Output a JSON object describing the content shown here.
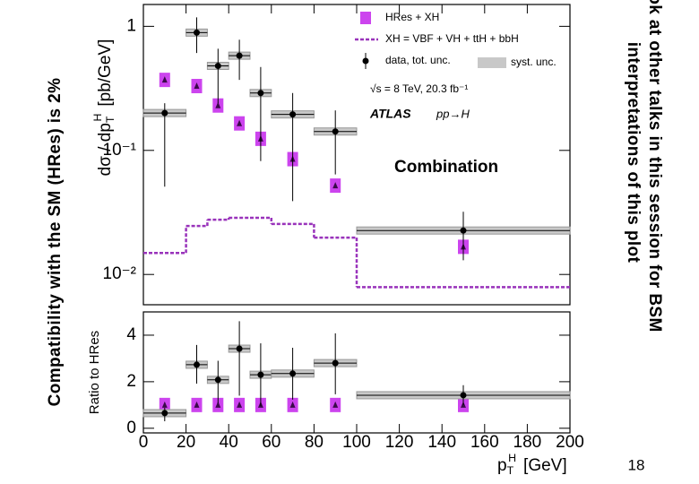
{
  "slide": {
    "left_note": "Compatibility with the SM (HRes) is 2%",
    "right_note": [
      "Look at other talks in this session for BSM",
      "interpretations of this plot"
    ],
    "page_number": "18"
  },
  "chart_data": [
    {
      "type": "errorbar",
      "log": true,
      "ylabel": {
        "text": "dσ / dp",
        "sub": "T",
        "sup": "H",
        "unit": "[pb/GeV]"
      },
      "xlim": [
        0,
        200
      ],
      "ylim": [
        0.0057,
        1.5
      ],
      "yticks": [
        {
          "value": 0.01,
          "label": "10⁻²"
        },
        {
          "value": 0.1,
          "label": "10⁻¹"
        },
        1
      ],
      "bins": [
        0,
        20,
        30,
        40,
        50,
        60,
        80,
        100,
        200
      ],
      "x": [
        10,
        25,
        35,
        45,
        55,
        70,
        90,
        150
      ],
      "series": [
        {
          "name": "HRes + XH",
          "color": "#cc44ee",
          "marker": "box",
          "values": [
            0.37,
            0.33,
            0.23,
            0.165,
            0.124,
            0.085,
            0.052,
            0.0167
          ]
        },
        {
          "name": "XH = VBF + VH + ttH + bbH",
          "color": "#9933bb",
          "marker": "step",
          "values": [
            0.0149,
            0.0246,
            0.0276,
            0.0286,
            0.0286,
            0.0255,
            0.0198,
            0.0079
          ]
        },
        {
          "name": "data, tot. unc.",
          "color": "#000000",
          "marker": "point",
          "values": [
            0.2,
            0.89,
            0.48,
            0.58,
            0.29,
            0.195,
            0.142,
            0.0226
          ],
          "lo": [
            0.051,
            0.61,
            0.24,
            0.37,
            0.082,
            0.039,
            0.064,
            0.013
          ],
          "hi": [
            0.24,
            1.18,
            0.66,
            0.78,
            0.47,
            0.29,
            0.21,
            0.032
          ]
        }
      ],
      "syst_label": "syst. unc.",
      "annotations": [
        "√s = 8 TeV,  20.3 fb⁻¹",
        "ATLAS",
        "pp→H",
        "Combination"
      ]
    },
    {
      "type": "errorbar",
      "log": false,
      "ylabel": {
        "text": "Ratio to HRes"
      },
      "xlabel": {
        "text": "p",
        "sub": "T",
        "sup": "H",
        "unit": "[GeV]"
      },
      "xlim": [
        0,
        200
      ],
      "ylim": [
        -0.2,
        5
      ],
      "xticks": [
        0,
        20,
        40,
        60,
        80,
        100,
        120,
        140,
        160,
        180,
        200
      ],
      "yticks": [
        0,
        2,
        4
      ],
      "bins": [
        0,
        20,
        30,
        40,
        50,
        60,
        80,
        100,
        200
      ],
      "x": [
        10,
        25,
        35,
        45,
        55,
        70,
        90,
        150
      ],
      "series": [
        {
          "color": "#cc44ee",
          "marker": "box",
          "values": [
            1,
            1,
            1,
            1,
            1,
            1,
            1,
            1
          ]
        },
        {
          "color": "#000000",
          "marker": "point",
          "values": [
            0.65,
            2.73,
            2.08,
            3.42,
            2.3,
            2.35,
            2.8,
            1.42
          ],
          "lo": [
            0.3,
            1.92,
            1.08,
            1.4,
            0.96,
            1.23,
            1.46,
            1.0
          ],
          "hi": [
            0.88,
            3.58,
            2.9,
            4.6,
            3.65,
            3.46,
            4.08,
            1.85
          ]
        }
      ]
    }
  ]
}
